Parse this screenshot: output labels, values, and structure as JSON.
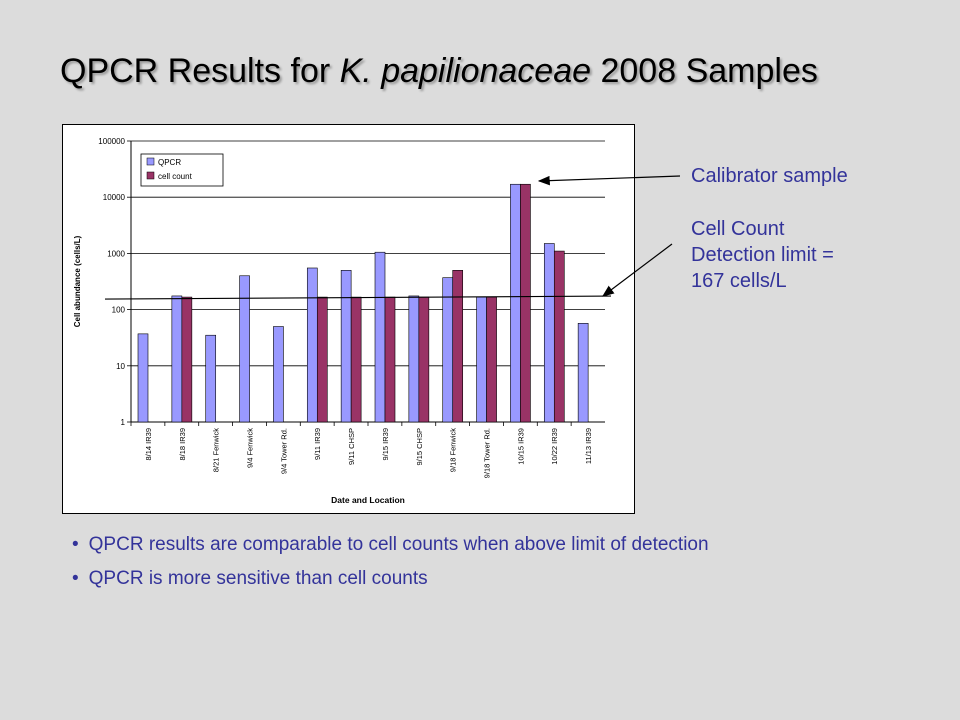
{
  "title": {
    "prefix": "QPCR Results for ",
    "species": "K. papilionaceae",
    "suffix": " 2008 Samples"
  },
  "annotations": {
    "calibrator": "Calibrator sample",
    "detection_line1": "Cell Count",
    "detection_line2": "Detection limit =",
    "detection_line3": "167 cells/L"
  },
  "bullets": [
    "QPCR results are comparable to cell counts when above limit of detection",
    "QPCR is more sensitive than cell counts"
  ],
  "colors": {
    "qpcr": "#9999ff",
    "cell_count": "#993366",
    "annotation_text": "#33339a"
  },
  "chart_data": {
    "type": "bar",
    "xlabel": "Date and Location",
    "ylabel": "Cell abundance (cells/L)",
    "yscale": "log",
    "ylim": [
      1,
      100000
    ],
    "yticks": [
      "1",
      "10",
      "100",
      "1000",
      "10000",
      "100000"
    ],
    "grid": true,
    "legend_position": "top-left",
    "categories": [
      "8/14 IR39",
      "8/18 IR39",
      "8/21 Fenwick",
      "9/4 Fenwick",
      "9/4 Tower Rd.",
      "9/11 IR39",
      "9/11 CHSP",
      "9/15 IR39",
      "9/15 CHSP",
      "9/18 Fenwick",
      "9/18 Tower Rd.",
      "10/15 IR39",
      "10/22 IR39",
      "11/13 IR39"
    ],
    "series": [
      {
        "name": "QPCR",
        "values": [
          37,
          175,
          35,
          400,
          50,
          550,
          500,
          1050,
          175,
          370,
          167,
          17000,
          1500,
          57
        ]
      },
      {
        "name": "cell count",
        "values": [
          null,
          167,
          null,
          null,
          null,
          167,
          167,
          167,
          167,
          500,
          167,
          17000,
          1100,
          null
        ]
      }
    ],
    "detection_limit": 167
  }
}
